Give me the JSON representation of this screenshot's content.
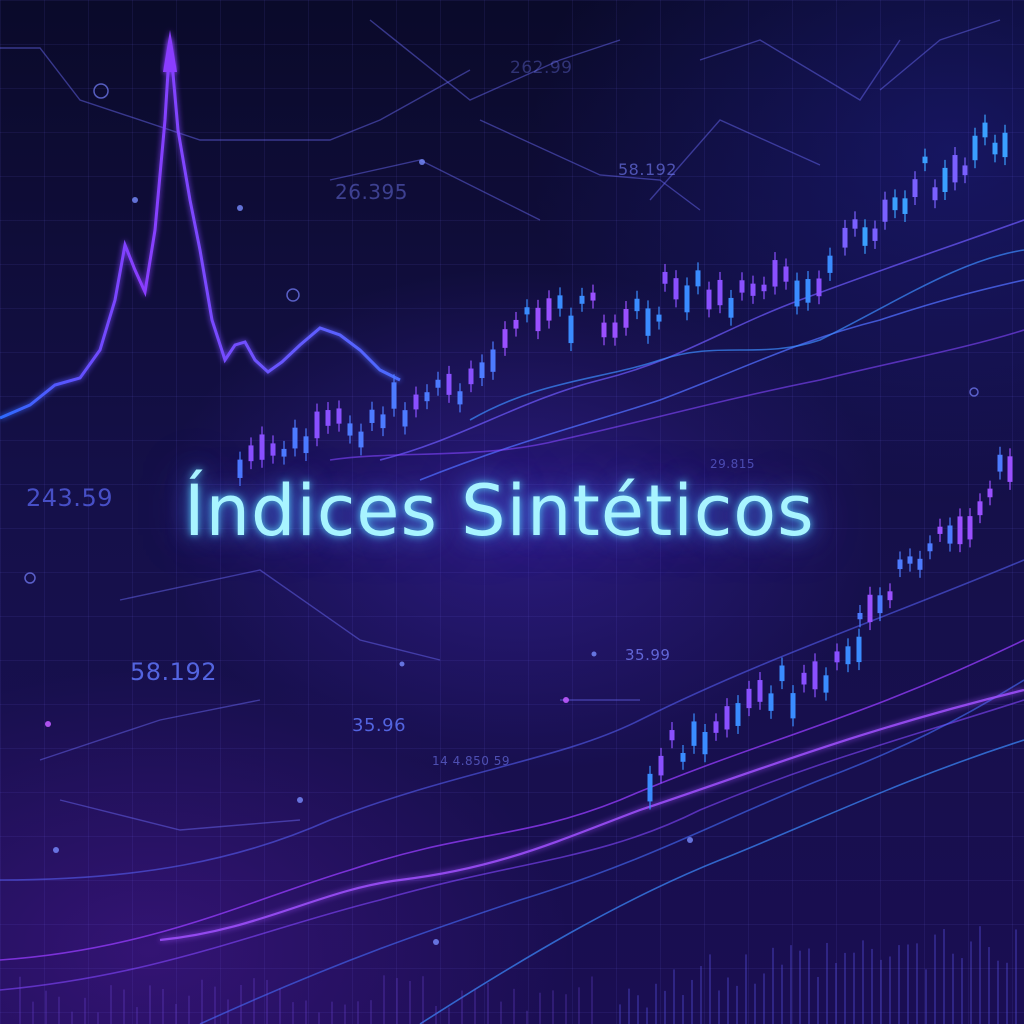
{
  "title": "Índices Sintéticos",
  "labels": {
    "val_1": "262.99",
    "val_2": "26.395",
    "val_3": "58.192",
    "val_4": "243.59",
    "val_5": "58.192",
    "val_6": "35.96",
    "val_7": "35.99",
    "val_8": "29.815",
    "val_9": "14 4.850 59"
  },
  "colors": {
    "title_glow": "#a8f4ff",
    "accent_purple": "#a040ff",
    "accent_blue": "#3aa0ff",
    "background": "#0b0930"
  }
}
